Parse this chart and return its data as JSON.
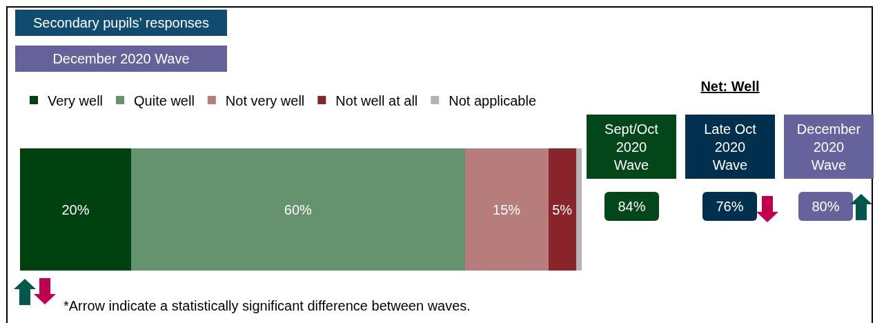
{
  "chart_data": [
    {
      "type": "bar",
      "orientation": "horizontal",
      "stacked": true,
      "title": "Secondary pupils’ responses",
      "subtitle": "December 2020 Wave",
      "categories": [
        null
      ],
      "tick_labels": false,
      "legend": "top",
      "series": [
        {
          "name": "Very well",
          "color": "#00420f",
          "values": [
            20
          ],
          "value_labels": [
            "20%"
          ]
        },
        {
          "name": "Quite well",
          "color": "#66936f",
          "values": [
            60
          ],
          "value_labels": [
            "60%"
          ]
        },
        {
          "name": "Not very well",
          "color": "#b77c7c",
          "values": [
            15
          ],
          "value_labels": [
            "15%"
          ]
        },
        {
          "name": "Not well at all",
          "color": "#88242a",
          "values": [
            5
          ],
          "value_labels": [
            "5%"
          ]
        },
        {
          "name": "Not applicable",
          "color": "#b4b4b4",
          "values": [
            1
          ],
          "value_labels": [
            null
          ]
        }
      ],
      "annotations": [
        "*Arrow indicate a statistically significant difference between waves."
      ]
    },
    {
      "type": "other",
      "title": "Net: Well",
      "categories": [
        "Sept/Oct 2020 Wave",
        "Late Oct 2020 Wave",
        "December 2020 Wave"
      ],
      "values": [
        84,
        76,
        80
      ],
      "value_labels": [
        "84%",
        "76%",
        "80%"
      ],
      "colors": [
        "#03461a",
        "#00304e",
        "#66629c"
      ]
    }
  ]
}
